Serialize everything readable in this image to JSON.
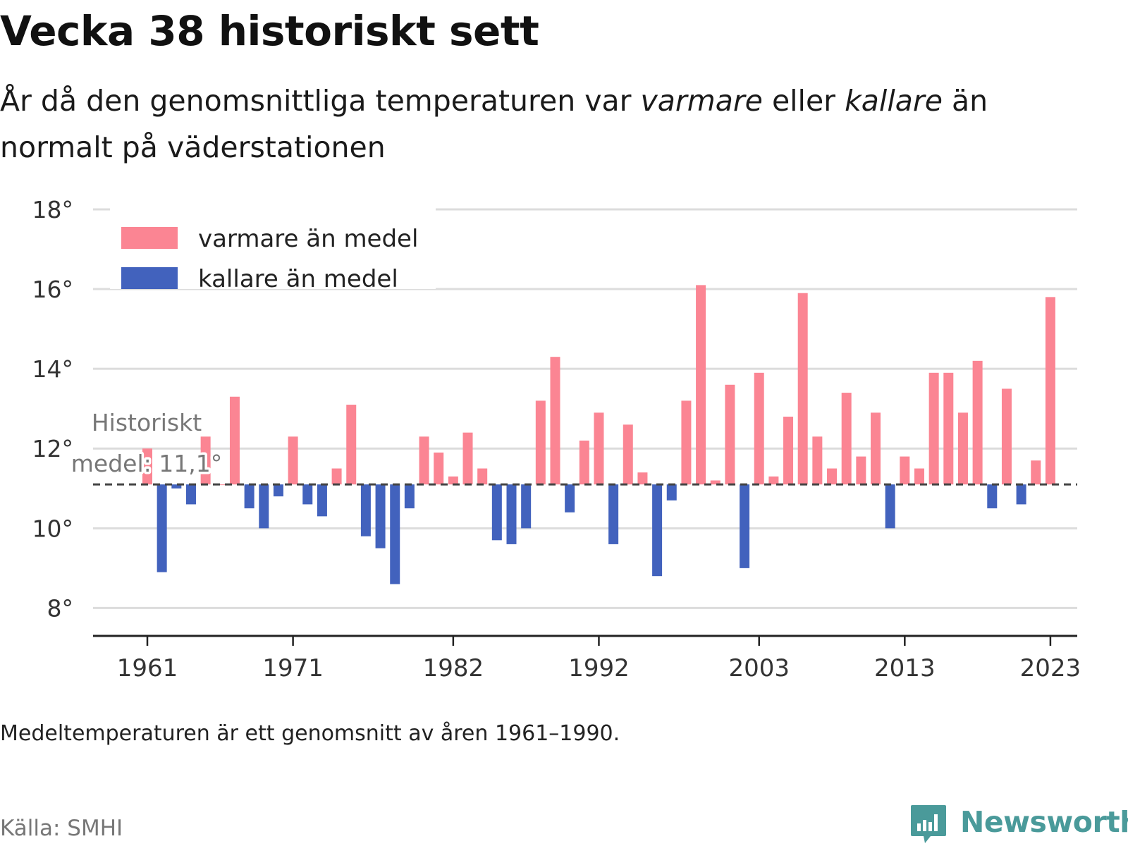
{
  "header": {
    "title": "Vecka 38 historiskt sett",
    "subtitle_part1": "År då den genomsnittliga temperaturen var ",
    "subtitle_warm": "varmare",
    "subtitle_part2": " eller ",
    "subtitle_cold": "kallare",
    "subtitle_part3": " än normalt på väderstationen"
  },
  "footer": {
    "note": "Medeltemperaturen är ett genomsnitt av åren 1961–1990.",
    "source": "Källa: SMHI",
    "brand": "Newsworthy"
  },
  "colors": {
    "warm": "#fb8593",
    "cold": "#4262bd",
    "brand": "#4a9a9a"
  },
  "chart_data": {
    "type": "bar",
    "baseline": 11.1,
    "ylim": [
      7.3,
      18.3
    ],
    "yticks": [
      8,
      10,
      12,
      14,
      16,
      18
    ],
    "ytick_suffix": "°",
    "xtick_years": [
      1961,
      1971,
      1982,
      1992,
      2003,
      2013,
      2023
    ],
    "grid": true,
    "legend_position": "top-left",
    "legend": [
      {
        "label": "varmare än medel",
        "color": "#fb8593"
      },
      {
        "label": "kallare än medel",
        "color": "#4262bd"
      }
    ],
    "baseline_label": [
      "Historiskt",
      "medel: 11,1°"
    ],
    "x": [
      1961,
      1962,
      1963,
      1964,
      1965,
      1966,
      1967,
      1968,
      1969,
      1970,
      1971,
      1972,
      1973,
      1974,
      1975,
      1976,
      1977,
      1978,
      1979,
      1980,
      1981,
      1982,
      1983,
      1984,
      1985,
      1986,
      1987,
      1988,
      1989,
      1990,
      1991,
      1992,
      1993,
      1994,
      1995,
      1996,
      1997,
      1998,
      1999,
      2000,
      2001,
      2002,
      2003,
      2004,
      2005,
      2006,
      2007,
      2008,
      2009,
      2010,
      2011,
      2012,
      2013,
      2014,
      2015,
      2016,
      2017,
      2018,
      2019,
      2020,
      2021,
      2022,
      2023
    ],
    "values": [
      12.0,
      8.9,
      11.0,
      10.6,
      12.3,
      11.1,
      13.3,
      10.5,
      10.0,
      10.8,
      12.3,
      10.6,
      10.3,
      11.5,
      13.1,
      9.8,
      9.5,
      8.6,
      10.5,
      12.3,
      11.9,
      11.3,
      12.4,
      11.5,
      9.7,
      9.6,
      10.0,
      13.2,
      14.3,
      10.4,
      12.2,
      12.9,
      9.6,
      12.6,
      11.4,
      8.8,
      10.7,
      13.2,
      16.1,
      11.2,
      13.6,
      9.0,
      13.9,
      11.3,
      12.8,
      15.9,
      12.3,
      11.5,
      13.4,
      11.8,
      12.9,
      10.0,
      11.8,
      11.5,
      13.9,
      13.9,
      12.9,
      14.2,
      10.5,
      13.5,
      10.6,
      11.7,
      15.8
    ]
  }
}
